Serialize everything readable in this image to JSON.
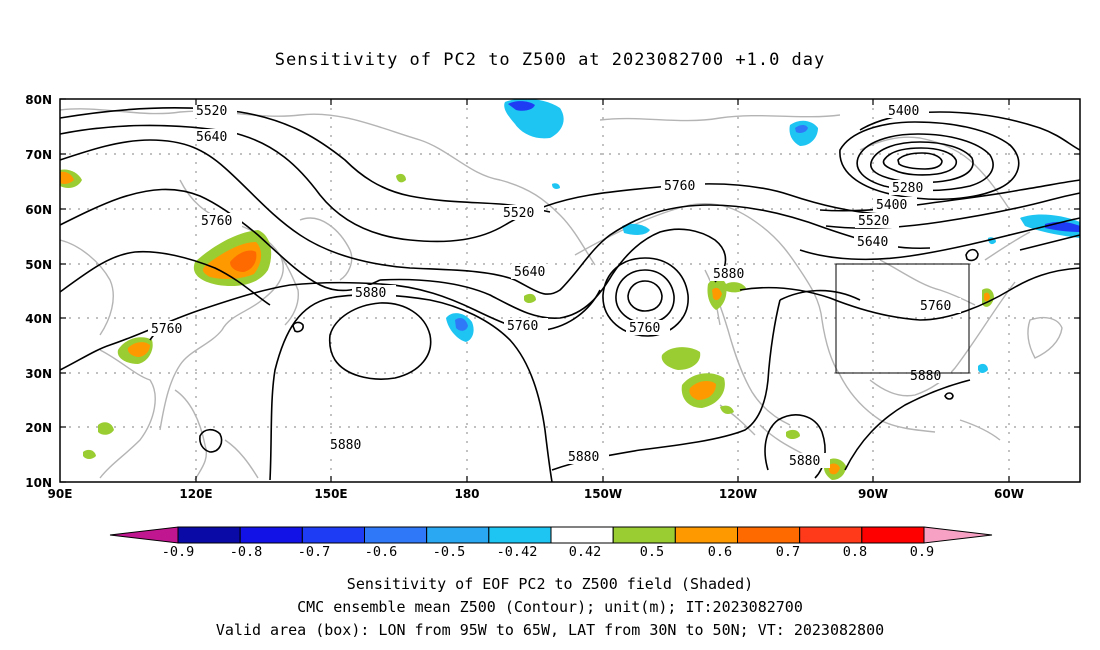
{
  "title": "Sensitivity of PC2 to Z500 at 2023082700 +1.0 day",
  "lat_labels": [
    "80N",
    "70N",
    "60N",
    "50N",
    "40N",
    "30N",
    "20N",
    "10N"
  ],
  "lon_labels": [
    "90E",
    "120E",
    "150E",
    "180",
    "150W",
    "120W",
    "90W",
    "60W"
  ],
  "contour_labels": [
    "5520",
    "5640",
    "5760",
    "5760",
    "5520",
    "5640",
    "5880",
    "5760",
    "5760",
    "5760",
    "5880",
    "5400",
    "5280",
    "5400",
    "5520",
    "5640",
    "5760",
    "5880",
    "5880",
    "5880",
    "5880"
  ],
  "colorbar": {
    "ticks": [
      "-0.9",
      "-0.8",
      "-0.7",
      "-0.6",
      "-0.5",
      "-0.42",
      "0.42",
      "0.5",
      "0.6",
      "0.7",
      "0.8",
      "0.9"
    ],
    "colors": [
      "#c0168f",
      "#0a0aa6",
      "#1212e6",
      "#1f3cf5",
      "#2f78f7",
      "#2aa8f2",
      "#1ec5f2",
      "#ffffff",
      "#9acd32",
      "#ff9900",
      "#ff6a00",
      "#ff3a1a",
      "#ff0000",
      "#f7a1c4"
    ]
  },
  "caption": {
    "line1": "Sensitivity of EOF PC2 to Z500 field (Shaded)",
    "line2": "CMC ensemble mean Z500 (Contour); unit(m); IT:2023082700",
    "line3": "Valid area (box): LON from 95W to 65W, LAT from 30N to 50N; VT: 2023082800"
  }
}
